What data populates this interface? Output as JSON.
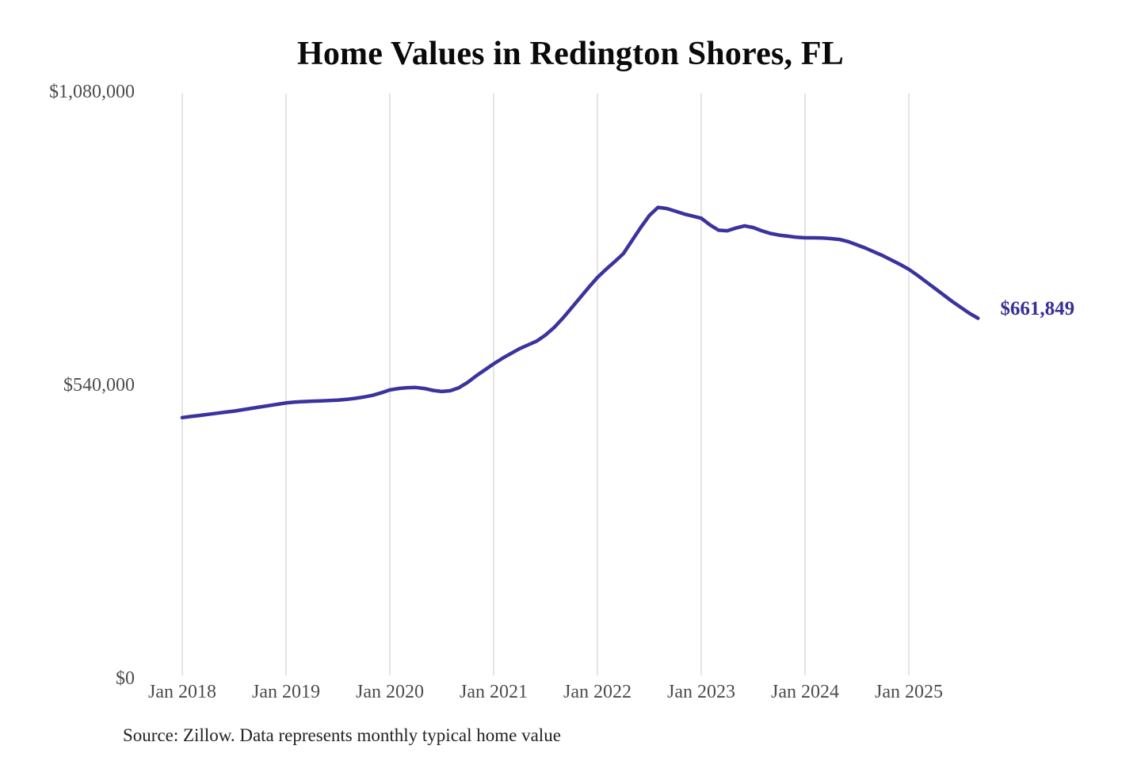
{
  "chart_data": {
    "type": "line",
    "title": "Home Values in Redington Shores, FL",
    "source_note": "Source: Zillow. Data represents monthly typical home value",
    "end_label": "$661,849",
    "latest_value": 661849,
    "ylim": [
      0,
      1080000
    ],
    "grid": "vertical-only",
    "legend": "none",
    "x_tick_labels": [
      "Jan 2018",
      "Jan 2019",
      "Jan 2020",
      "Jan 2021",
      "Jan 2022",
      "Jan 2023",
      "Jan 2024",
      "Jan 2025"
    ],
    "y_ticks": [
      {
        "label": "$0",
        "value": 0
      },
      {
        "label": "$540,000",
        "value": 540000
      },
      {
        "label": "$1,080,000",
        "value": 1080000
      }
    ],
    "series": [
      {
        "name": "Monthly typical home value",
        "start": "2018-01",
        "frequency": "monthly",
        "values": [
          479000,
          481000,
          483000,
          485000,
          487000,
          489000,
          491000,
          493500,
          496000,
          498500,
          501000,
          503500,
          506000,
          507500,
          508500,
          509200,
          509800,
          510400,
          511200,
          512500,
          514500,
          517000,
          520000,
          524500,
          530000,
          532500,
          534000,
          534500,
          532500,
          529000,
          527000,
          528500,
          534000,
          544000,
          556000,
          567000,
          578000,
          588000,
          597000,
          606000,
          613000,
          620000,
          631000,
          645000,
          662000,
          681000,
          700000,
          719000,
          737000,
          752000,
          766000,
          781000,
          805000,
          829000,
          851000,
          866000,
          864000,
          859000,
          854000,
          850000,
          846000,
          834000,
          824000,
          823000,
          828000,
          832000,
          829000,
          823000,
          818000,
          815000,
          813000,
          811000,
          810000,
          810000,
          809500,
          808500,
          807000,
          803000,
          797000,
          791000,
          784000,
          777000,
          769000,
          761000,
          752000,
          741000,
          729000,
          717000,
          705000,
          693000,
          682000,
          671000,
          661849
        ]
      }
    ],
    "colors": {
      "line": "#3a339e",
      "grid": "#c9c9c9",
      "tick_text": "#4c4c4c",
      "title_text": "#0a0a0a",
      "source_text": "#222222",
      "end_label_text": "#363095"
    }
  }
}
